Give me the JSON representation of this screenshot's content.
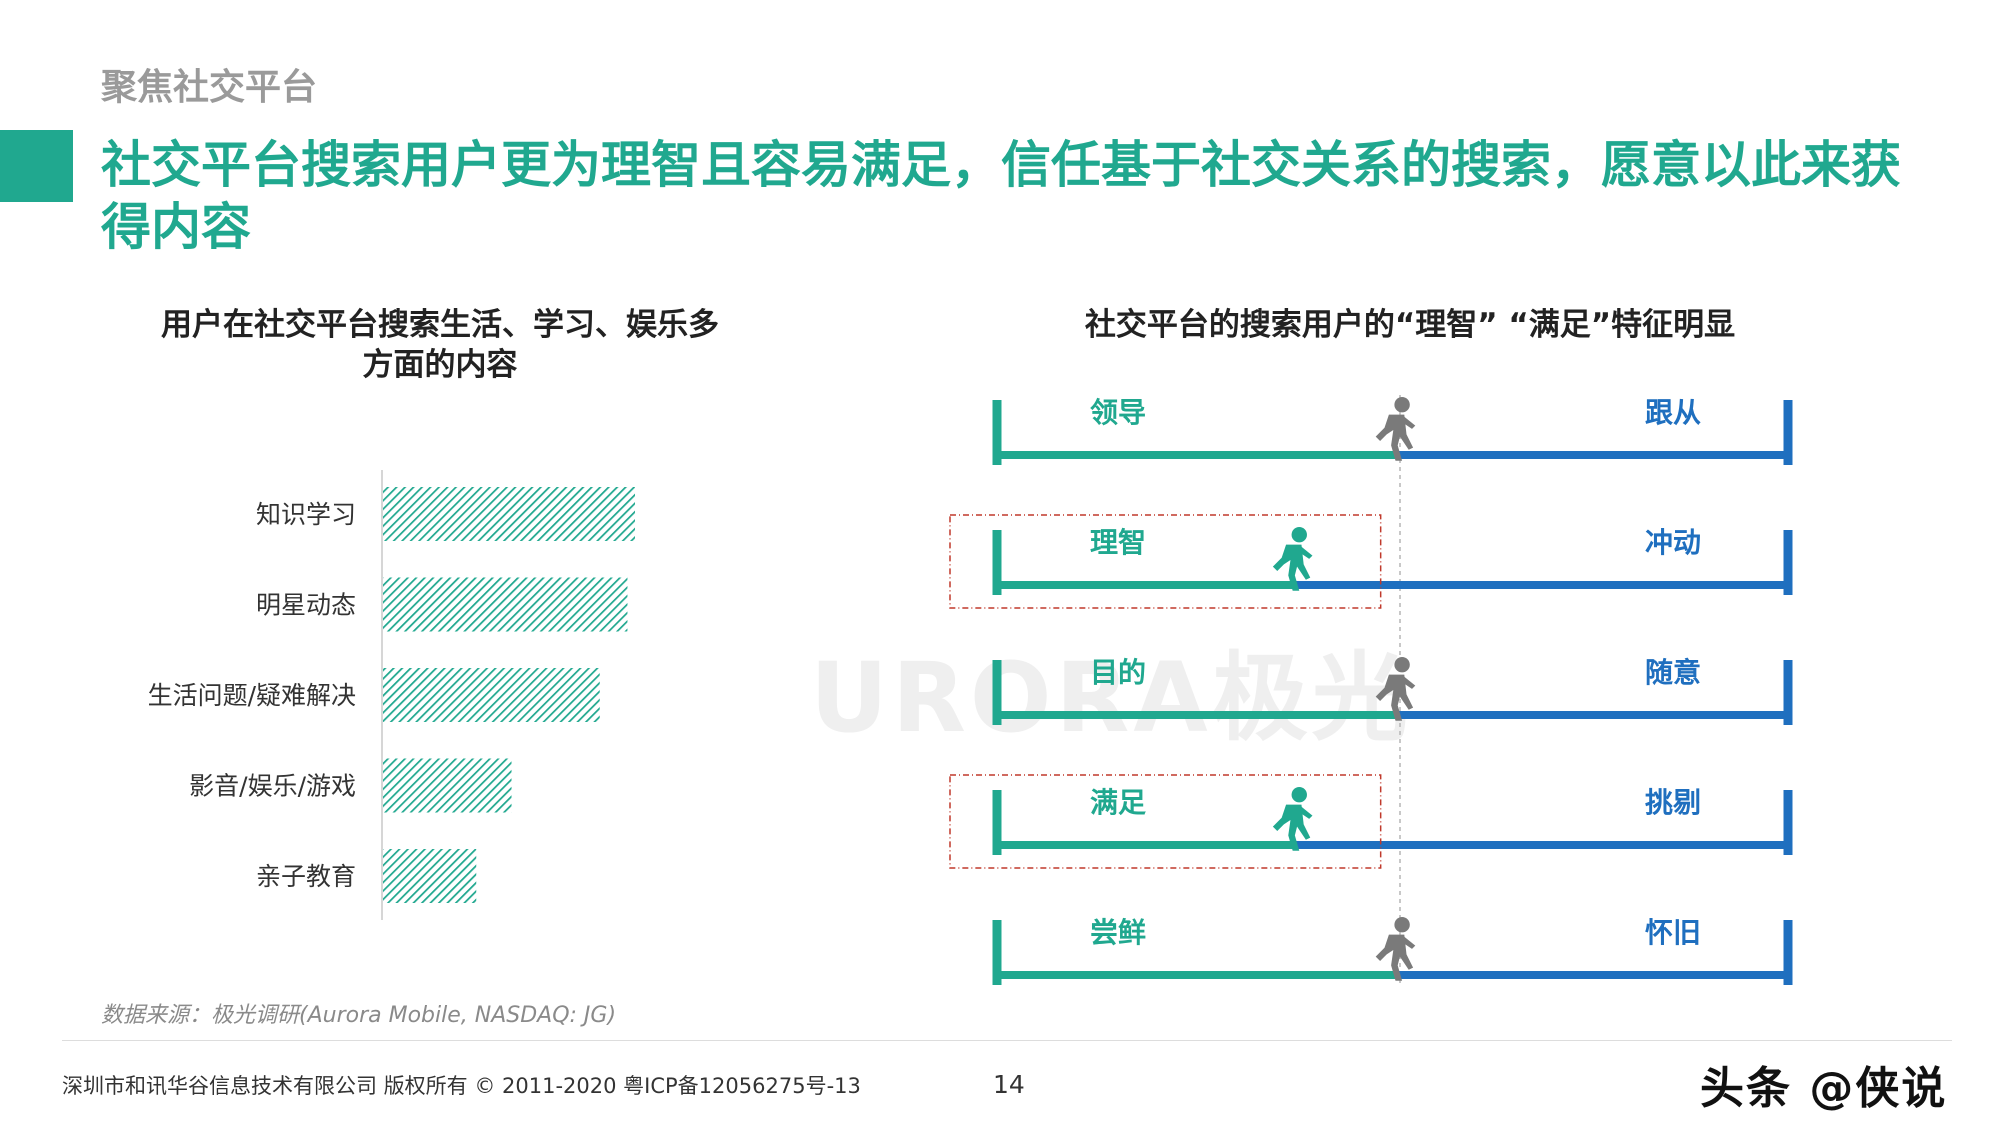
{
  "header": {
    "section_label": "聚焦社交平台",
    "headline": "社交平台搜索用户更为理智且容易满足，信任基于社交关系的搜索，愿意以此来获得内容"
  },
  "left_panel": {
    "title": "用户在社交平台搜索生活、学习、娱乐多方面的内容"
  },
  "right_panel": {
    "title": "社交平台的搜索用户的“理智” “满足”特征明显"
  },
  "colors": {
    "teal": "#20a88f",
    "blue": "#1f6fbf",
    "gray_icon": "#7a7a7a",
    "highlight_box": "#c0392b"
  },
  "chart_data": [
    {
      "type": "bar",
      "orientation": "horizontal",
      "categories": [
        "知识学习",
        "明星动态",
        "生活问题/疑难解决",
        "影音/娱乐/游戏",
        "亲子教育"
      ],
      "values": [
        100,
        97,
        86,
        51,
        37
      ],
      "ylim": [
        0,
        100
      ],
      "grid": false,
      "legend": "none"
    },
    {
      "type": "scale",
      "rows": [
        {
          "left": "领导",
          "right": "跟从",
          "position": 0.5,
          "highlighted": false,
          "icon": "gray-runner-icon"
        },
        {
          "left": "理智",
          "right": "冲动",
          "position": 0.37,
          "highlighted": true,
          "icon": "teal-runner-icon"
        },
        {
          "left": "目的",
          "right": "随意",
          "position": 0.5,
          "highlighted": false,
          "icon": "gray-runner-icon"
        },
        {
          "left": "满足",
          "right": "挑剔",
          "position": 0.37,
          "highlighted": true,
          "icon": "teal-runner-icon"
        },
        {
          "left": "尝鲜",
          "right": "怀旧",
          "position": 0.5,
          "highlighted": false,
          "icon": "gray-runner-icon"
        }
      ]
    }
  ],
  "background_watermark": "URORA极光",
  "footer": {
    "source": "数据来源：极光调研(Aurora Mobile, NASDAQ: JG)",
    "copyright": "深圳市和讯华谷信息技术有限公司 版权所有 © 2011-2020 粤ICP备12056275号-13",
    "page_number": "14",
    "corner_watermark": "头条 @侠说"
  }
}
